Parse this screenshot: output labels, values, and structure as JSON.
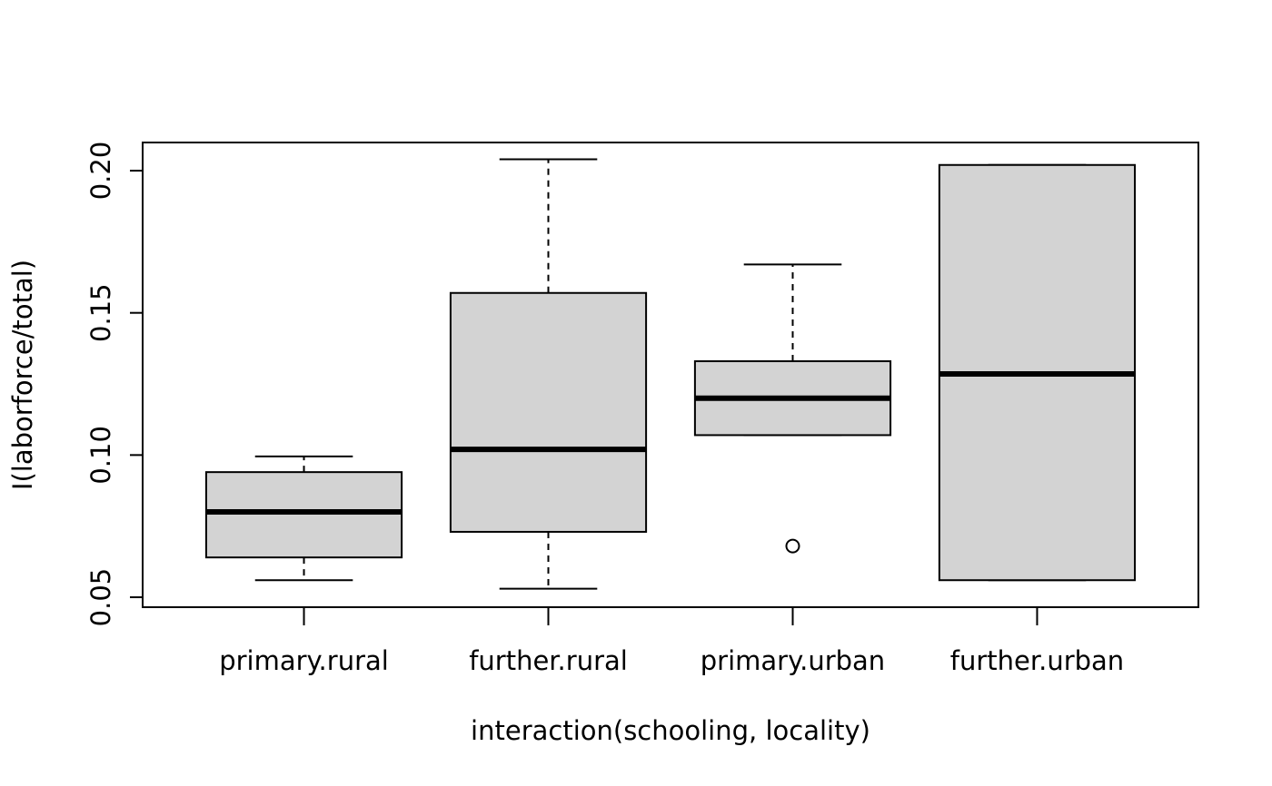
{
  "chart_data": {
    "type": "box",
    "xlabel": "interaction(schooling, locality)",
    "ylabel": "I(laborforce/total)",
    "ylim": [
      0.0465,
      0.2099
    ],
    "yticks": [
      0.05,
      0.1,
      0.15,
      0.2
    ],
    "ytick_labels": [
      "0.05",
      "0.10",
      "0.15",
      "0.20"
    ],
    "grid": false,
    "categories": [
      "primary.rural",
      "further.rural",
      "primary.urban",
      "further.urban"
    ],
    "boxes": [
      {
        "category": "primary.rural",
        "whisker_low": 0.056,
        "q1": 0.064,
        "median": 0.08,
        "q3": 0.094,
        "whisker_high": 0.0995,
        "outliers": []
      },
      {
        "category": "further.rural",
        "whisker_low": 0.053,
        "q1": 0.073,
        "median": 0.102,
        "q3": 0.157,
        "whisker_high": 0.204,
        "outliers": []
      },
      {
        "category": "primary.urban",
        "whisker_low": 0.107,
        "q1": 0.107,
        "median": 0.12,
        "q3": 0.133,
        "whisker_high": 0.167,
        "outliers": [
          0.068
        ]
      },
      {
        "category": "further.urban",
        "whisker_low": 0.056,
        "q1": 0.056,
        "median": 0.1285,
        "q3": 0.202,
        "whisker_high": 0.202,
        "outliers": []
      }
    ],
    "colors": {
      "box_fill": "#d3d3d3",
      "stroke": "#000000"
    }
  }
}
